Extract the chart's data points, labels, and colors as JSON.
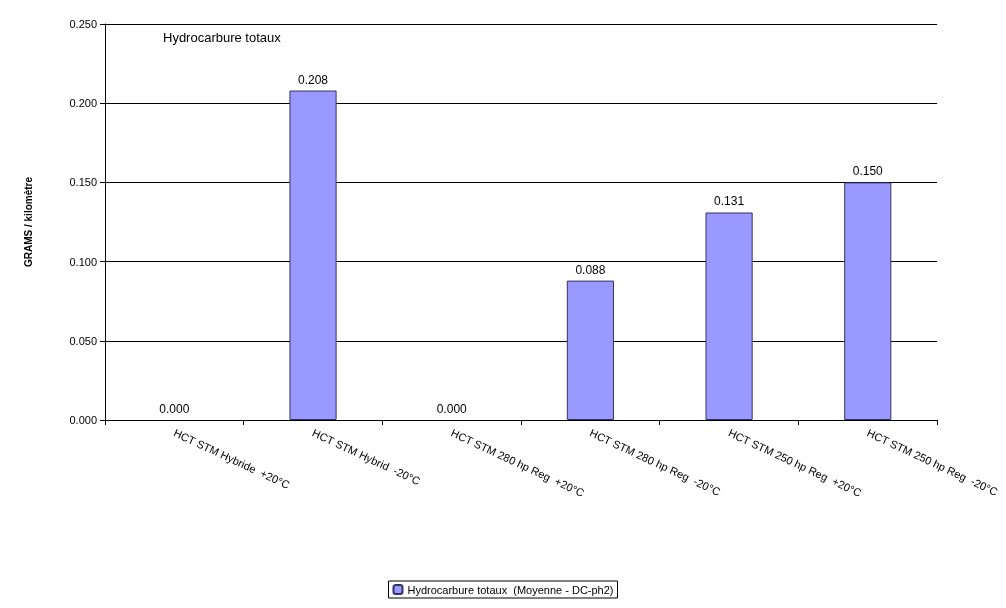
{
  "chart_data": {
    "type": "bar",
    "title": "Hydrocarbure totaux",
    "ylabel": "GRAMS / kilomètre",
    "categories": [
      "HCT STM Hybride  +20°C",
      "HCT STM Hybrid  -20°C",
      "HCT STM 280 hp Reg  +20°C",
      "HCT STM 280 hp Reg  -20°C",
      "HCT STM 250 hp Reg  +20°C",
      "HCT STM 250 hp Reg  -20°C"
    ],
    "series": [
      {
        "name": "Hydrocarbure totaux  (Moyenne - DC-ph2)",
        "color": "#9999ff",
        "values": [
          0,
          0.208,
          0,
          0.088,
          0.131,
          0.15
        ],
        "value_labels": [
          "0.000",
          "0.208",
          "0.000",
          "0.088",
          "0.131",
          "0.150"
        ]
      }
    ],
    "ylim": [
      0,
      0.25
    ],
    "yticks": [
      {
        "value": 0,
        "label": "0.000"
      },
      {
        "value": 0.05,
        "label": "0.050"
      },
      {
        "value": 0.1,
        "label": "0.100"
      },
      {
        "value": 0.15,
        "label": "0.150"
      },
      {
        "value": 0.2,
        "label": "0.200"
      },
      {
        "value": 0.25,
        "label": "0.250"
      }
    ],
    "grid": "y",
    "legend": "bottom"
  }
}
